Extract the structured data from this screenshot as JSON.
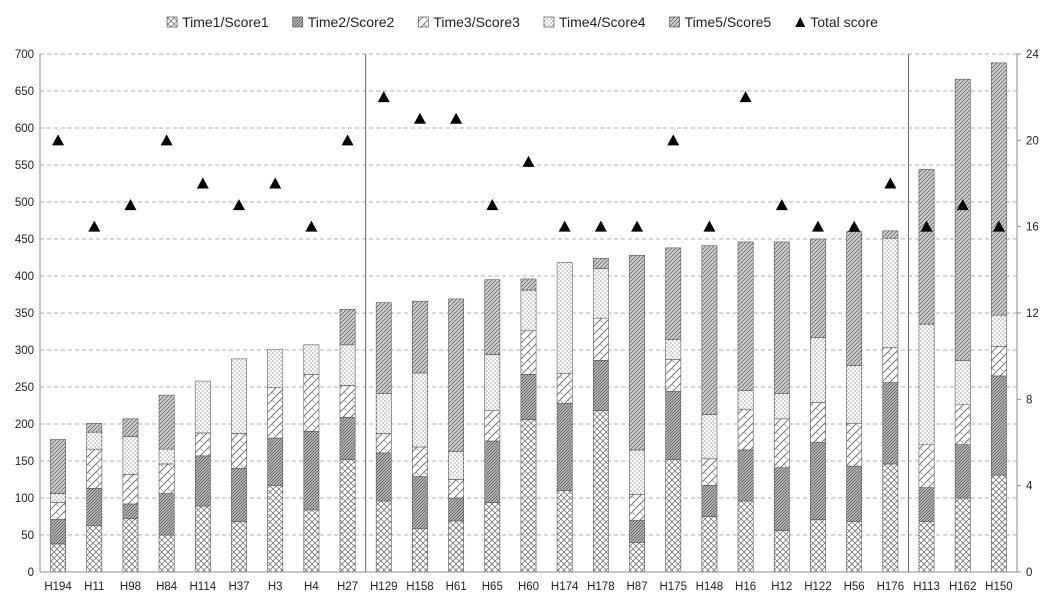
{
  "chart_data": {
    "type": "bar",
    "stacked": true,
    "title": "",
    "xlabel": "",
    "ylabel": "",
    "ylim": [
      0,
      700
    ],
    "y_ticks": [
      0,
      50,
      100,
      150,
      200,
      250,
      300,
      350,
      400,
      450,
      500,
      550,
      600,
      650,
      700
    ],
    "y2lim": [
      0,
      24
    ],
    "y2_ticks": [
      0,
      4,
      8,
      12,
      16,
      20,
      24
    ],
    "grid": "horizontal dashed",
    "legend_position": "top",
    "group_separators_after": [
      "H27",
      "H176"
    ],
    "categories": [
      "H194",
      "H11",
      "H98",
      "H84",
      "H114",
      "H37",
      "H3",
      "H4",
      "H27",
      "H129",
      "H158",
      "H61",
      "H65",
      "H60",
      "H174",
      "H178",
      "H87",
      "H175",
      "H148",
      "H16",
      "H12",
      "H122",
      "H56",
      "H176",
      "H113",
      "H162",
      "H150"
    ],
    "series": [
      {
        "name": "Time1/Score1",
        "pattern": "crosshatch",
        "values": [
          38,
          63,
          72,
          50,
          89,
          68,
          117,
          84,
          152,
          96,
          59,
          69,
          94,
          206,
          110,
          218,
          40,
          152,
          75,
          96,
          56,
          71,
          68,
          146,
          68,
          100,
          131
        ]
      },
      {
        "name": "Time2/Score2",
        "pattern": "dense-diagonal",
        "values": [
          33,
          50,
          20,
          56,
          68,
          72,
          64,
          106,
          57,
          65,
          70,
          31,
          83,
          61,
          118,
          68,
          30,
          92,
          42,
          69,
          85,
          104,
          75,
          110,
          46,
          72,
          134
        ]
      },
      {
        "name": "Time3/Score3",
        "pattern": "zigzag",
        "values": [
          23,
          53,
          40,
          40,
          31,
          47,
          68,
          77,
          43,
          26,
          40,
          25,
          41,
          59,
          40,
          57,
          35,
          43,
          36,
          55,
          66,
          54,
          58,
          47,
          58,
          54,
          40
        ]
      },
      {
        "name": "Time4/Score4",
        "pattern": "dots",
        "values": [
          12,
          23,
          51,
          20,
          70,
          101,
          52,
          40,
          55,
          54,
          100,
          38,
          76,
          55,
          150,
          67,
          60,
          27,
          60,
          25,
          34,
          88,
          78,
          148,
          163,
          60,
          42
        ]
      },
      {
        "name": "Time5/Score5",
        "pattern": "diagonal",
        "values": [
          73,
          12,
          24,
          73,
          0,
          0,
          0,
          0,
          48,
          123,
          97,
          206,
          101,
          15,
          0,
          14,
          263,
          124,
          228,
          201,
          205,
          133,
          181,
          10,
          209,
          380,
          341
        ]
      },
      {
        "name": "Total score",
        "type": "scatter",
        "axis": "secondary",
        "marker": "triangle",
        "values": [
          20,
          16,
          17,
          20,
          18,
          17,
          18,
          16,
          20,
          22,
          21,
          21,
          17,
          19,
          16,
          16,
          16,
          20,
          16,
          22,
          17,
          16,
          16,
          18,
          16,
          17,
          16
        ]
      }
    ]
  },
  "colors": {
    "grid": "#9a9a9a",
    "axis": "#8c8c8c",
    "bar_stroke": "#555555",
    "pattern_ink": "#555555",
    "marker": "#000000"
  }
}
